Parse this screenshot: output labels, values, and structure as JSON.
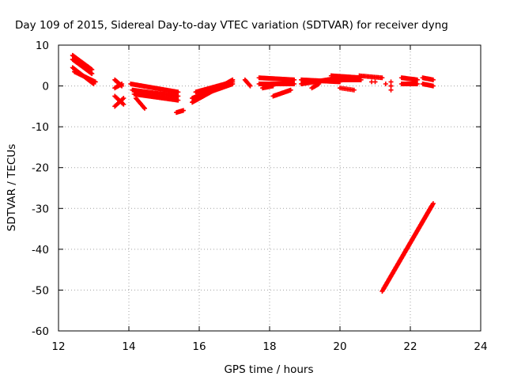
{
  "chart_data": {
    "type": "scatter",
    "title": "Day 109 of 2015, Sidereal Day-to-day VTEC variation (SDTVAR) for receiver dyng",
    "xlabel": "GPS time / hours",
    "ylabel": "SDTVAR / TECUs",
    "xlim": [
      12,
      24
    ],
    "ylim": [
      -60,
      10
    ],
    "xticks": [
      12,
      14,
      16,
      18,
      20,
      22,
      24
    ],
    "yticks": [
      10,
      0,
      -10,
      -20,
      -30,
      -40,
      -50,
      -60
    ],
    "xtick_labels": [
      "12",
      "14",
      "16",
      "18",
      "20",
      "22",
      "24"
    ],
    "ytick_labels": [
      "10",
      "0",
      "-10",
      "-20",
      "-30",
      "-40",
      "-50",
      "-60"
    ],
    "grid": true,
    "marker": "+",
    "color": "#ff0000",
    "segments": [
      {
        "x0": 12.4,
        "y0": 7.5,
        "x1": 12.95,
        "y1": 4.0,
        "n": 24
      },
      {
        "x0": 12.4,
        "y0": 6.5,
        "x1": 12.95,
        "y1": 3.0,
        "n": 24
      },
      {
        "x0": 12.4,
        "y0": 4.5,
        "x1": 13.0,
        "y1": 0.5,
        "n": 26
      },
      {
        "x0": 12.45,
        "y0": 3.5,
        "x1": 13.05,
        "y1": 1.0,
        "n": 24
      },
      {
        "x0": 13.6,
        "y0": 1.5,
        "x1": 13.8,
        "y1": 0.0,
        "n": 10
      },
      {
        "x0": 13.6,
        "y0": -0.5,
        "x1": 13.8,
        "y1": 0.5,
        "n": 8
      },
      {
        "x0": 13.6,
        "y0": -2.5,
        "x1": 13.85,
        "y1": -4.5,
        "n": 10
      },
      {
        "x0": 13.6,
        "y0": -5.0,
        "x1": 13.85,
        "y1": -3.0,
        "n": 10
      },
      {
        "x0": 14.05,
        "y0": 0.5,
        "x1": 15.4,
        "y1": -1.5,
        "n": 48
      },
      {
        "x0": 14.1,
        "y0": -1.0,
        "x1": 15.4,
        "y1": -2.5,
        "n": 46
      },
      {
        "x0": 14.15,
        "y0": -2.0,
        "x1": 15.4,
        "y1": -3.5,
        "n": 46
      },
      {
        "x0": 14.2,
        "y0": -3.0,
        "x1": 14.45,
        "y1": -5.5,
        "n": 12
      },
      {
        "x0": 15.35,
        "y0": -6.5,
        "x1": 15.55,
        "y1": -6.0,
        "n": 8
      },
      {
        "x0": 15.8,
        "y0": -4.0,
        "x1": 16.95,
        "y1": 1.5,
        "n": 56
      },
      {
        "x0": 15.8,
        "y0": -3.0,
        "x1": 16.95,
        "y1": 0.5,
        "n": 56
      },
      {
        "x0": 15.9,
        "y0": -1.5,
        "x1": 16.95,
        "y1": 1.0,
        "n": 48
      },
      {
        "x0": 17.3,
        "y0": 1.5,
        "x1": 17.45,
        "y1": 0.0,
        "n": 8
      },
      {
        "x0": 17.7,
        "y0": 2.0,
        "x1": 18.7,
        "y1": 1.5,
        "n": 42
      },
      {
        "x0": 17.7,
        "y0": 0.5,
        "x1": 18.7,
        "y1": 0.5,
        "n": 42
      },
      {
        "x0": 17.8,
        "y0": -0.5,
        "x1": 18.1,
        "y1": 0.0,
        "n": 12
      },
      {
        "x0": 18.1,
        "y0": -2.5,
        "x1": 18.6,
        "y1": -1.0,
        "n": 20
      },
      {
        "x0": 18.9,
        "y0": 0.5,
        "x1": 20.0,
        "y1": 2.0,
        "n": 46
      },
      {
        "x0": 18.9,
        "y0": 1.5,
        "x1": 20.0,
        "y1": 1.0,
        "n": 46
      },
      {
        "x0": 19.2,
        "y0": -0.5,
        "x1": 19.4,
        "y1": 0.5,
        "n": 8
      },
      {
        "x0": 19.75,
        "y0": 2.5,
        "x1": 20.6,
        "y1": 2.0,
        "n": 36
      },
      {
        "x0": 19.75,
        "y0": 1.5,
        "x1": 20.6,
        "y1": 1.5,
        "n": 36
      },
      {
        "x0": 20.0,
        "y0": -0.5,
        "x1": 20.4,
        "y1": -1.0,
        "n": 10
      },
      {
        "x0": 20.55,
        "y0": 2.5,
        "x1": 21.2,
        "y1": 2.0,
        "n": 18
      },
      {
        "x0": 20.9,
        "y0": 1.0,
        "x1": 21.0,
        "y1": 1.0,
        "n": 2
      },
      {
        "x0": 21.3,
        "y0": 0.5,
        "x1": 21.3,
        "y1": 0.5,
        "n": 1
      },
      {
        "x0": 21.45,
        "y0": 0.0,
        "x1": 21.45,
        "y1": 0.0,
        "n": 1
      },
      {
        "x0": 21.45,
        "y0": -1.0,
        "x1": 21.45,
        "y1": 1.0,
        "n": 3
      },
      {
        "x0": 21.75,
        "y0": 2.0,
        "x1": 22.2,
        "y1": 1.5,
        "n": 20
      },
      {
        "x0": 21.75,
        "y0": 0.5,
        "x1": 22.2,
        "y1": 0.5,
        "n": 20
      },
      {
        "x0": 22.35,
        "y0": 2.0,
        "x1": 22.65,
        "y1": 1.5,
        "n": 12
      },
      {
        "x0": 22.35,
        "y0": 0.5,
        "x1": 22.65,
        "y1": 0.0,
        "n": 12
      },
      {
        "x0": 21.2,
        "y0": -50.3,
        "x1": 22.6,
        "y1": -29.5,
        "n": 80
      },
      {
        "x0": 21.25,
        "y0": -49.5,
        "x1": 22.65,
        "y1": -28.8,
        "n": 80
      }
    ]
  }
}
